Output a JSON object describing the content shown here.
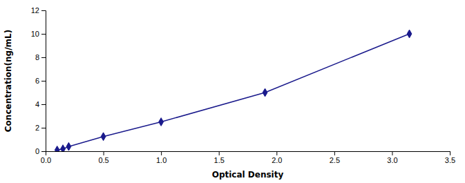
{
  "chart_data": {
    "type": "line",
    "xlabel": "Optical Density",
    "ylabel": "Concentration(ng/mL)",
    "x": [
      0.1,
      0.15,
      0.2,
      0.5,
      1.0,
      1.9,
      3.15
    ],
    "series": [
      {
        "values": [
          0.1,
          0.2,
          0.4,
          1.25,
          2.5,
          5.0,
          10.0
        ],
        "color": "#1a1a8c",
        "marker": "diamond"
      }
    ],
    "xlim": [
      0,
      3.5
    ],
    "ylim": [
      0,
      12
    ],
    "xticks": [
      {
        "value": 0,
        "label": "0.0"
      },
      0.5,
      {
        "value": 1,
        "label": "1.0"
      },
      1.5,
      {
        "value": 2,
        "label": "2.0"
      },
      2.5,
      {
        "value": 3,
        "label": "3.0"
      },
      3.5
    ],
    "yticks": [
      0,
      2,
      4,
      6,
      8,
      10,
      12
    ],
    "grid": false
  }
}
